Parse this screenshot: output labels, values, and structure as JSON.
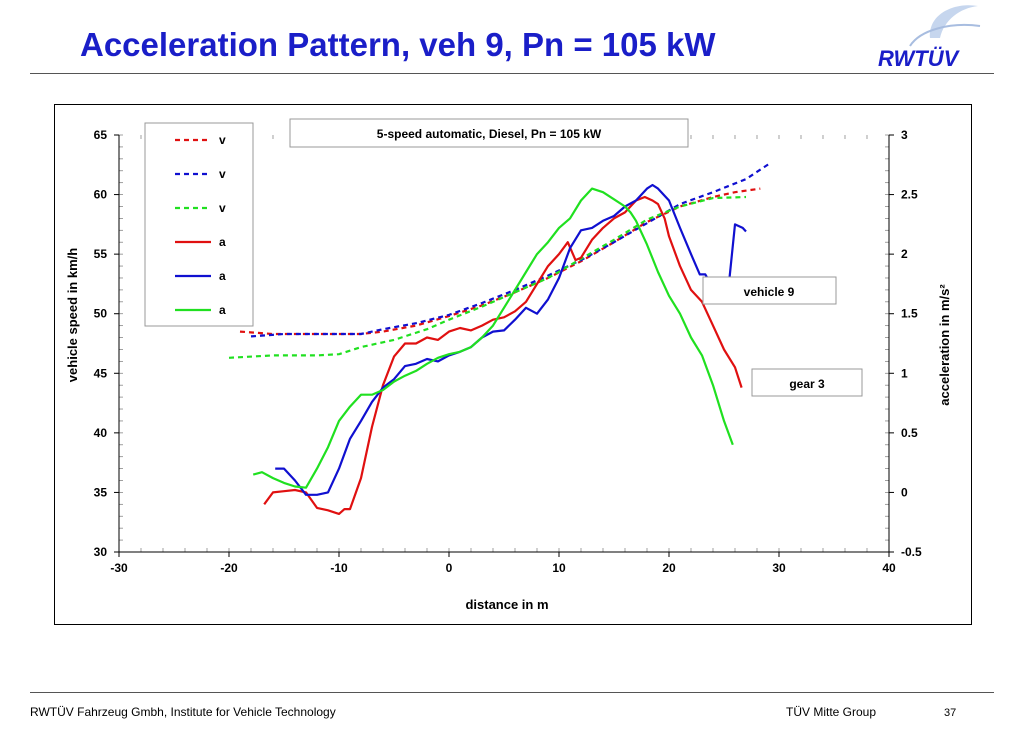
{
  "slide": {
    "title": "Acceleration Pattern, veh 9, Pn = 105 kW",
    "logo_text": "RWTÜV",
    "footer_left": "RWTÜV Fahrzeug Gmbh, Institute for Vehicle Technology",
    "footer_right": "TÜV Mitte Group",
    "page_number": "37"
  },
  "colors": {
    "title": "#1a1ec8",
    "red": "#e01010",
    "blue": "#1010d0",
    "green": "#20e020"
  },
  "chart_data": {
    "type": "line",
    "title": "5-speed automatic, Diesel, Pn = 105 kW",
    "xlabel": "distance in m",
    "ylabel": "vehicle speed in km/h",
    "y2label": "acceleration in m/s²",
    "xlim": [
      -30,
      40
    ],
    "ylim": [
      30,
      65
    ],
    "y2lim": [
      -0.5,
      3
    ],
    "x_ticks": [
      "-30",
      "-20",
      "-10",
      "0",
      "10",
      "20",
      "30",
      "40"
    ],
    "y_ticks": [
      "30",
      "35",
      "40",
      "45",
      "50",
      "55",
      "60",
      "65"
    ],
    "y2_ticks": [
      "-0.5",
      "0",
      "0.5",
      "1",
      "1.5",
      "2",
      "2.5",
      "3"
    ],
    "annotations": [
      "vehicle 9",
      "gear 3"
    ],
    "legend_position": "top-left",
    "series": [
      {
        "name": "v",
        "axis": "left",
        "style": "dashed",
        "color": "#e01010",
        "points": [
          [
            -19,
            48.5
          ],
          [
            -16,
            48.3
          ],
          [
            -12,
            48.3
          ],
          [
            -8,
            48.3
          ],
          [
            -6,
            48.5
          ],
          [
            -3,
            49.0
          ],
          [
            0,
            49.8
          ],
          [
            3,
            50.7
          ],
          [
            6,
            51.8
          ],
          [
            9,
            53.0
          ],
          [
            12,
            54.4
          ],
          [
            15,
            56.0
          ],
          [
            18,
            57.7
          ],
          [
            21,
            59.0
          ],
          [
            24,
            59.8
          ],
          [
            26,
            60.2
          ],
          [
            28.3,
            60.5
          ]
        ]
      },
      {
        "name": "v",
        "axis": "left",
        "style": "dashed",
        "color": "#1010d0",
        "points": [
          [
            -18,
            48.1
          ],
          [
            -15,
            48.3
          ],
          [
            -12,
            48.3
          ],
          [
            -8,
            48.3
          ],
          [
            -6,
            48.7
          ],
          [
            -3,
            49.2
          ],
          [
            0,
            49.9
          ],
          [
            3,
            50.9
          ],
          [
            6,
            52.0
          ],
          [
            9,
            53.2
          ],
          [
            12,
            54.5
          ],
          [
            15,
            56.0
          ],
          [
            18,
            57.6
          ],
          [
            21,
            59.2
          ],
          [
            24,
            60.2
          ],
          [
            27,
            61.3
          ],
          [
            29.3,
            62.7
          ]
        ]
      },
      {
        "name": "v",
        "axis": "left",
        "style": "dashed",
        "color": "#20e020",
        "points": [
          [
            -20,
            46.3
          ],
          [
            -16,
            46.5
          ],
          [
            -12,
            46.5
          ],
          [
            -10,
            46.6
          ],
          [
            -8,
            47.2
          ],
          [
            -5,
            47.8
          ],
          [
            -2,
            48.7
          ],
          [
            0,
            49.5
          ],
          [
            3,
            50.6
          ],
          [
            6,
            51.8
          ],
          [
            9,
            53.0
          ],
          [
            12,
            54.6
          ],
          [
            15,
            56.2
          ],
          [
            18,
            57.9
          ],
          [
            21,
            59.0
          ],
          [
            24,
            59.7
          ],
          [
            27,
            59.8
          ]
        ]
      },
      {
        "name": "a",
        "axis": "right",
        "style": "solid",
        "color": "#e01010",
        "points": [
          [
            -16.8,
            -0.1
          ],
          [
            -16,
            0
          ],
          [
            -15,
            0.01
          ],
          [
            -14,
            0.02
          ],
          [
            -13,
            0
          ],
          [
            -12,
            -0.13
          ],
          [
            -11,
            -0.15
          ],
          [
            -10,
            -0.18
          ],
          [
            -9.5,
            -0.14
          ],
          [
            -9,
            -0.14
          ],
          [
            -8,
            0.12
          ],
          [
            -7,
            0.55
          ],
          [
            -6,
            0.9
          ],
          [
            -5,
            1.14
          ],
          [
            -4,
            1.25
          ],
          [
            -3,
            1.25
          ],
          [
            -2,
            1.3
          ],
          [
            -1,
            1.28
          ],
          [
            0,
            1.35
          ],
          [
            1,
            1.38
          ],
          [
            2,
            1.36
          ],
          [
            3,
            1.4
          ],
          [
            4,
            1.45
          ],
          [
            5,
            1.47
          ],
          [
            6,
            1.52
          ],
          [
            7,
            1.6
          ],
          [
            8,
            1.75
          ],
          [
            9,
            1.9
          ],
          [
            10,
            2.0
          ],
          [
            10.8,
            2.1
          ],
          [
            11.5,
            1.95
          ],
          [
            12,
            1.97
          ],
          [
            13,
            2.12
          ],
          [
            14,
            2.22
          ],
          [
            15,
            2.3
          ],
          [
            16,
            2.35
          ],
          [
            17,
            2.45
          ],
          [
            17.8,
            2.48
          ],
          [
            18.5,
            2.45
          ],
          [
            19,
            2.42
          ],
          [
            19.6,
            2.3
          ],
          [
            20,
            2.15
          ],
          [
            21,
            1.9
          ],
          [
            22,
            1.7
          ],
          [
            23,
            1.6
          ],
          [
            24,
            1.4
          ],
          [
            25,
            1.2
          ],
          [
            26,
            1.05
          ],
          [
            26.6,
            0.88
          ]
        ]
      },
      {
        "name": "a",
        "axis": "right",
        "style": "solid",
        "color": "#1010d0",
        "points": [
          [
            -15.8,
            0.2
          ],
          [
            -15,
            0.2
          ],
          [
            -14,
            0.1
          ],
          [
            -13,
            -0.02
          ],
          [
            -12,
            -0.02
          ],
          [
            -11,
            0
          ],
          [
            -10,
            0.2
          ],
          [
            -9,
            0.45
          ],
          [
            -8,
            0.6
          ],
          [
            -7,
            0.76
          ],
          [
            -6,
            0.88
          ],
          [
            -5,
            0.95
          ],
          [
            -4,
            1.06
          ],
          [
            -3,
            1.08
          ],
          [
            -2,
            1.12
          ],
          [
            -1,
            1.1
          ],
          [
            0,
            1.15
          ],
          [
            1,
            1.18
          ],
          [
            2,
            1.22
          ],
          [
            3,
            1.3
          ],
          [
            4,
            1.35
          ],
          [
            5,
            1.36
          ],
          [
            6,
            1.45
          ],
          [
            7,
            1.55
          ],
          [
            8,
            1.5
          ],
          [
            9,
            1.62
          ],
          [
            10,
            1.8
          ],
          [
            11,
            2.05
          ],
          [
            12,
            2.2
          ],
          [
            13,
            2.22
          ],
          [
            14,
            2.28
          ],
          [
            15,
            2.32
          ],
          [
            16,
            2.4
          ],
          [
            17,
            2.45
          ],
          [
            18,
            2.55
          ],
          [
            18.5,
            2.58
          ],
          [
            19,
            2.55
          ],
          [
            20,
            2.45
          ],
          [
            21,
            2.22
          ],
          [
            22,
            2.0
          ],
          [
            22.8,
            1.83
          ],
          [
            23.3,
            1.83
          ],
          [
            24,
            1.72
          ],
          [
            25,
            1.76
          ],
          [
            25.5,
            1.8
          ],
          [
            26,
            2.25
          ],
          [
            26.7,
            2.22
          ],
          [
            27,
            2.19
          ]
        ]
      },
      {
        "name": "a",
        "axis": "right",
        "style": "solid",
        "color": "#20e020",
        "points": [
          [
            -17.8,
            0.15
          ],
          [
            -17,
            0.17
          ],
          [
            -16,
            0.12
          ],
          [
            -15,
            0.08
          ],
          [
            -14,
            0.05
          ],
          [
            -13,
            0.04
          ],
          [
            -12,
            0.2
          ],
          [
            -11,
            0.38
          ],
          [
            -10,
            0.6
          ],
          [
            -9,
            0.72
          ],
          [
            -8,
            0.82
          ],
          [
            -7,
            0.82
          ],
          [
            -6,
            0.86
          ],
          [
            -5,
            0.93
          ],
          [
            -4,
            0.98
          ],
          [
            -3,
            1.02
          ],
          [
            -2,
            1.08
          ],
          [
            -1,
            1.13
          ],
          [
            0,
            1.16
          ],
          [
            1,
            1.18
          ],
          [
            2,
            1.22
          ],
          [
            3,
            1.3
          ],
          [
            4,
            1.4
          ],
          [
            5,
            1.55
          ],
          [
            6,
            1.7
          ],
          [
            7,
            1.85
          ],
          [
            8,
            2.0
          ],
          [
            9,
            2.1
          ],
          [
            10,
            2.22
          ],
          [
            11,
            2.3
          ],
          [
            12,
            2.45
          ],
          [
            13,
            2.55
          ],
          [
            14,
            2.52
          ],
          [
            15,
            2.46
          ],
          [
            16,
            2.4
          ],
          [
            16.5,
            2.35
          ],
          [
            17,
            2.28
          ],
          [
            18,
            2.08
          ],
          [
            19,
            1.85
          ],
          [
            20,
            1.65
          ],
          [
            21,
            1.5
          ],
          [
            22,
            1.3
          ],
          [
            23,
            1.15
          ],
          [
            24,
            0.9
          ],
          [
            25,
            0.6
          ],
          [
            25.8,
            0.4
          ]
        ]
      }
    ]
  }
}
